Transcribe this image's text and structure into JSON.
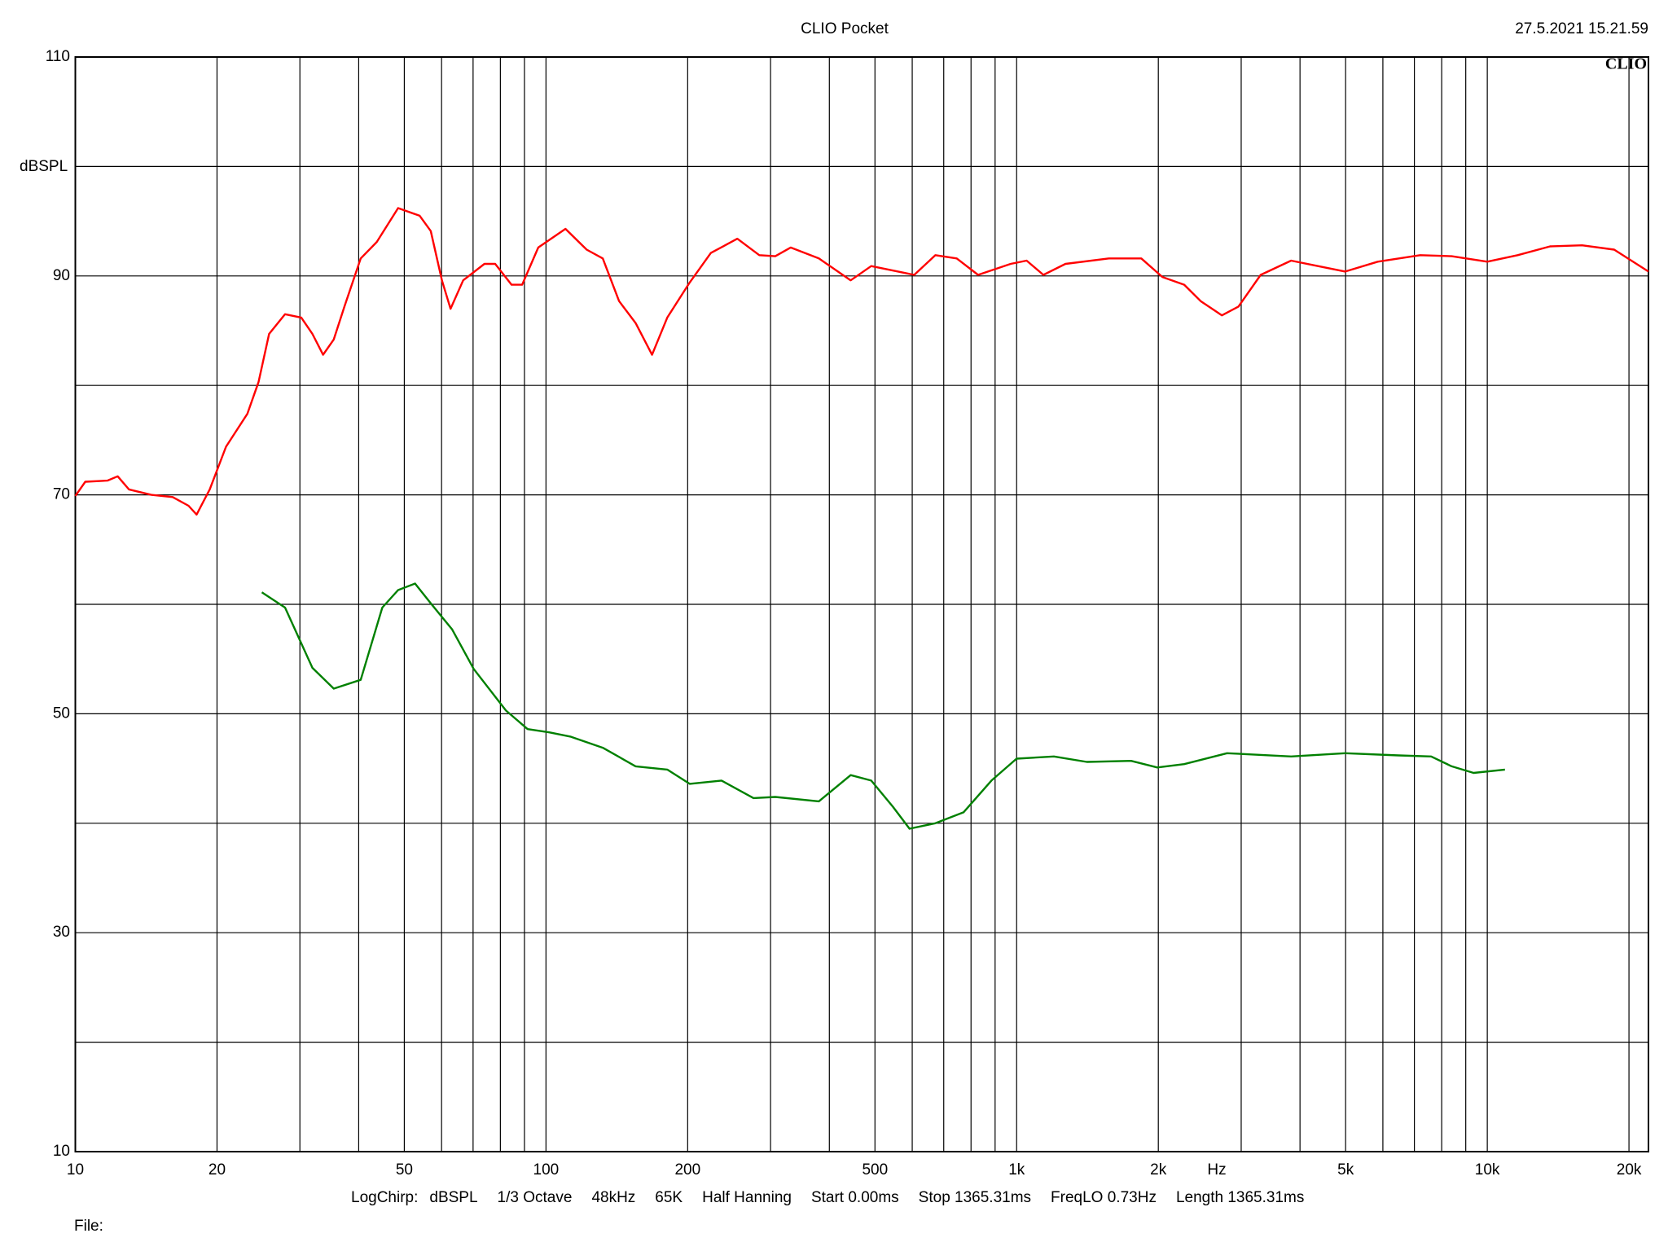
{
  "chart_data": {
    "type": "line",
    "title": "CLIO Pocket",
    "timestamp": "27.5.2021 15.21.59",
    "logo": "CLIO",
    "y_label": "dBSPL",
    "x_label": "Hz",
    "log_x": true,
    "grid": true,
    "xlim": [
      10,
      22000
    ],
    "ylim": [
      10,
      110
    ],
    "xticks": [
      10,
      20,
      50,
      100,
      200,
      500,
      {
        "value": 1000,
        "label": "1k"
      },
      {
        "value": 2000,
        "label": "2k"
      },
      {
        "value": 5000,
        "label": "5k"
      },
      {
        "value": 10000,
        "label": "10k"
      },
      {
        "value": 20000,
        "label": "20k"
      }
    ],
    "minor_xticks": [
      30,
      40,
      60,
      70,
      80,
      90,
      300,
      400,
      600,
      700,
      800,
      900,
      3000,
      4000,
      6000,
      7000,
      8000,
      9000
    ],
    "yticks": [
      10,
      30,
      50,
      70,
      90,
      110
    ],
    "minor_yticks": [
      20,
      40,
      60,
      80,
      100
    ],
    "series": [
      {
        "color": "#ff0000",
        "x": [
          10,
          10.5,
          11.7,
          12.3,
          13.0,
          14.5,
          16.1,
          17.4,
          18.1,
          19.3,
          20.9,
          23.2,
          24.5,
          25.8,
          27.9,
          30.2,
          31.9,
          33.6,
          35.4,
          37.3,
          40.4,
          43.7,
          48.5,
          53.9,
          56.9,
          60.1,
          62.7,
          66.7,
          74,
          78,
          84.5,
          89,
          96.3,
          110,
          122,
          132,
          143,
          155,
          168,
          181,
          202,
          224,
          255,
          284,
          307,
          331,
          380,
          444,
          491,
          575,
          606,
          672,
          746,
          828,
          971,
          1050,
          1140,
          1270,
          1570,
          1840,
          2040,
          2270,
          2460,
          2730,
          2960,
          3300,
          3830,
          4260,
          4990,
          5850,
          7200,
          8400,
          10000,
          11600,
          13600,
          15900,
          18600,
          22000
        ],
        "values": [
          69.9,
          71.2,
          71.3,
          71.7,
          70.5,
          70,
          69.8,
          69,
          68.2,
          70.5,
          74.4,
          77.4,
          80.3,
          84.7,
          86.5,
          86.2,
          84.7,
          82.8,
          84.2,
          87.2,
          91.6,
          93.1,
          96.2,
          95.5,
          94.1,
          89.6,
          87,
          89.6,
          91.1,
          91.1,
          89.2,
          89.2,
          92.6,
          94.3,
          92.4,
          91.6,
          87.7,
          85.7,
          82.8,
          86.2,
          89.4,
          92.1,
          93.4,
          91.9,
          91.8,
          92.6,
          91.6,
          89.6,
          90.9,
          90.3,
          90.1,
          91.9,
          91.6,
          90.1,
          91.1,
          91.4,
          90.1,
          91.1,
          91.6,
          91.6,
          89.9,
          89.2,
          87.7,
          86.4,
          87.2,
          90.1,
          91.4,
          91,
          90.4,
          91.3,
          91.9,
          91.8,
          91.3,
          91.9,
          92.7,
          92.8,
          92.4,
          90.4
        ]
      },
      {
        "color": "#008000",
        "x": [
          24.9,
          27.9,
          31.9,
          35.4,
          40.4,
          44.9,
          48.5,
          52.7,
          56.9,
          63.2,
          70.2,
          82.2,
          91.4,
          101.6,
          113,
          132,
          155,
          181,
          202,
          236,
          276,
          307,
          380,
          444,
          491,
          546,
          592,
          672,
          771,
          884,
          1000,
          1200,
          1410,
          1750,
          1990,
          2270,
          2800,
          3830,
          4990,
          6480,
          7600,
          8400,
          9350,
          10900
        ],
        "values": [
          61.1,
          59.7,
          54.2,
          52.3,
          53.1,
          59.7,
          61.3,
          61.9,
          60.1,
          57.7,
          54.1,
          50.3,
          48.6,
          48.3,
          47.9,
          46.9,
          45.2,
          44.9,
          43.6,
          43.9,
          42.3,
          42.4,
          42,
          44.4,
          43.9,
          41.5,
          39.5,
          40,
          41,
          43.9,
          45.9,
          46.1,
          45.6,
          45.7,
          45.1,
          45.4,
          46.4,
          46.1,
          46.4,
          46.2,
          46.1,
          45.2,
          44.6,
          44.9
        ]
      }
    ],
    "settings": [
      "LogChirp:",
      "dBSPL",
      "1/3 Octave",
      "48kHz",
      "65K",
      "Half Hanning",
      "Start 0.00ms",
      "Stop 1365.31ms",
      "FreqLO 0.73Hz",
      "Length 1365.31ms"
    ],
    "file_label": "File:"
  }
}
